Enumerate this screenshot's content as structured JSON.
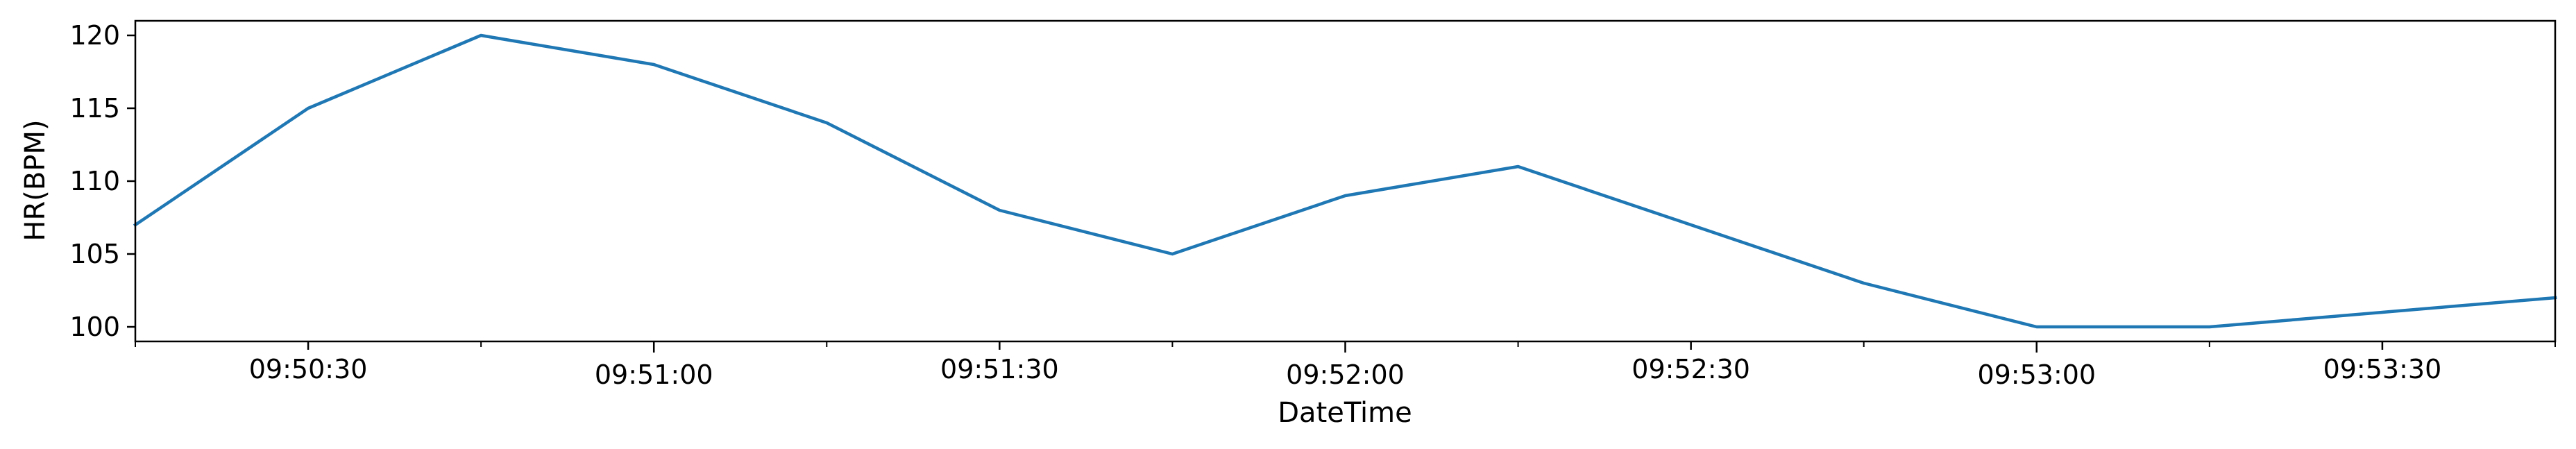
{
  "chart_data": {
    "type": "line",
    "title": "",
    "xlabel": "DateTime",
    "ylabel": "HR(BPM)",
    "xlim": [
      "09:50:15",
      "09:53:45"
    ],
    "ylim": [
      99,
      121
    ],
    "grid": false,
    "legend": "none",
    "x_tick_labels": [
      "09:50:30",
      "09:51:00",
      "09:51:30",
      "09:52:00",
      "09:52:30",
      "09:53:00",
      "09:53:30"
    ],
    "y_tick_labels": [
      "100",
      "105",
      "110",
      "115",
      "120"
    ],
    "series": [
      {
        "color": "#1f77b4",
        "x": [
          "09:50:15",
          "09:50:30",
          "09:50:45",
          "09:51:00",
          "09:51:15",
          "09:51:30",
          "09:51:45",
          "09:52:00",
          "09:52:15",
          "09:52:30",
          "09:52:45",
          "09:53:00",
          "09:53:15",
          "09:53:30",
          "09:53:45"
        ],
        "y": [
          107,
          115,
          120,
          118,
          114,
          108,
          105,
          109,
          111,
          107,
          103,
          100,
          100,
          101,
          102
        ]
      }
    ]
  }
}
